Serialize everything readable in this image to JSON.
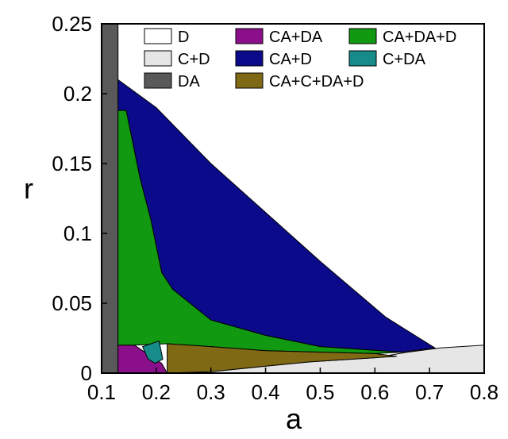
{
  "chart_data": {
    "type": "area",
    "title": "",
    "xlabel": "a",
    "ylabel": "r",
    "xlim": [
      0.1,
      0.8
    ],
    "ylim": [
      0,
      0.25
    ],
    "xticks": [
      "0.1",
      "0.2",
      "0.3",
      "0.4",
      "0.5",
      "0.6",
      "0.7",
      "0.8"
    ],
    "yticks": [
      "0",
      "0.05",
      "0.1",
      "0.15",
      "0.2",
      "0.25"
    ],
    "grid": false,
    "legend_position": "top-right",
    "series": [
      {
        "name": "D",
        "color": "#ffffff",
        "polygon": []
      },
      {
        "name": "C+D",
        "color": "#e6e6e6",
        "polygon": [
          [
            0.3,
            0
          ],
          [
            0.8,
            0
          ],
          [
            0.8,
            0.02
          ],
          [
            0.72,
            0.018
          ],
          [
            0.66,
            0.015
          ],
          [
            0.6,
            0.011
          ],
          [
            0.48,
            0.008
          ],
          [
            0.4,
            0.005
          ],
          [
            0.3,
            0.001
          ]
        ]
      },
      {
        "name": "DA",
        "color": "#595959",
        "polygon": [
          [
            0.1,
            0
          ],
          [
            0.13,
            0
          ],
          [
            0.13,
            0.25
          ],
          [
            0.1,
            0.25
          ]
        ]
      },
      {
        "name": "CA+DA",
        "color": "#8b0e8b",
        "polygon": [
          [
            0.13,
            0
          ],
          [
            0.22,
            0
          ],
          [
            0.21,
            0.007
          ],
          [
            0.16,
            0.02
          ],
          [
            0.13,
            0.02
          ]
        ]
      },
      {
        "name": "CA+D",
        "color": "#0a0a8a",
        "polygon": [
          [
            0.13,
            0.21
          ],
          [
            0.2,
            0.19
          ],
          [
            0.3,
            0.15
          ],
          [
            0.5,
            0.08
          ],
          [
            0.62,
            0.04
          ],
          [
            0.71,
            0.018
          ],
          [
            0.65,
            0.015
          ],
          [
            0.5,
            0.019
          ],
          [
            0.4,
            0.027
          ],
          [
            0.3,
            0.038
          ],
          [
            0.23,
            0.06
          ],
          [
            0.21,
            0.072
          ],
          [
            0.19,
            0.11
          ],
          [
            0.17,
            0.14
          ],
          [
            0.145,
            0.188
          ],
          [
            0.13,
            0.188
          ]
        ]
      },
      {
        "name": "CA+DA+D",
        "color": "#119911",
        "polygon": [
          [
            0.13,
            0.188
          ],
          [
            0.145,
            0.188
          ],
          [
            0.17,
            0.14
          ],
          [
            0.19,
            0.11
          ],
          [
            0.21,
            0.072
          ],
          [
            0.23,
            0.06
          ],
          [
            0.3,
            0.038
          ],
          [
            0.4,
            0.027
          ],
          [
            0.5,
            0.019
          ],
          [
            0.65,
            0.015
          ],
          [
            0.6,
            0.014
          ],
          [
            0.4,
            0.016
          ],
          [
            0.3,
            0.019
          ],
          [
            0.22,
            0.021
          ],
          [
            0.16,
            0.02
          ],
          [
            0.13,
            0.02
          ]
        ]
      },
      {
        "name": "C+DA",
        "color": "#178a8a",
        "polygon": [
          [
            0.175,
            0.019
          ],
          [
            0.205,
            0.023
          ],
          [
            0.212,
            0.01
          ],
          [
            0.198,
            0.007
          ],
          [
            0.185,
            0.01
          ]
        ]
      },
      {
        "name": "CA+C+DA+D",
        "color": "#806914",
        "polygon": [
          [
            0.22,
            0.021
          ],
          [
            0.3,
            0.019
          ],
          [
            0.4,
            0.016
          ],
          [
            0.6,
            0.014
          ],
          [
            0.64,
            0.012
          ],
          [
            0.6,
            0.011
          ],
          [
            0.48,
            0.008
          ],
          [
            0.4,
            0.005
          ],
          [
            0.3,
            0.001
          ],
          [
            0.22,
            0
          ]
        ]
      }
    ],
    "legend_order": [
      "D",
      "CA+DA",
      "CA+DA+D",
      "C+D",
      "CA+D",
      "C+DA",
      "DA",
      "CA+C+DA+D"
    ]
  }
}
